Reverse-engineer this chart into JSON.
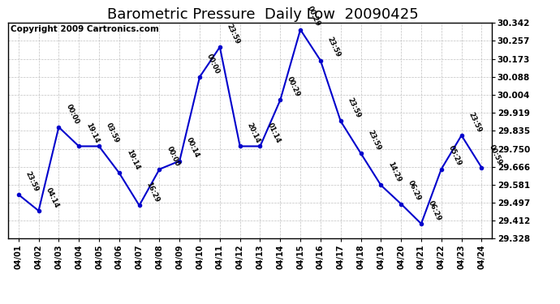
{
  "title": "Barometric Pressure  Daily Low  20090425",
  "copyright": "Copyright 2009 Cartronics.com",
  "x_labels": [
    "04/01",
    "04/02",
    "04/03",
    "04/04",
    "04/05",
    "04/06",
    "04/07",
    "04/08",
    "04/09",
    "04/10",
    "04/11",
    "04/12",
    "04/13",
    "04/14",
    "04/15",
    "04/16",
    "04/17",
    "04/18",
    "04/19",
    "04/20",
    "04/21",
    "04/22",
    "04/23",
    "04/24"
  ],
  "y_values": [
    29.535,
    29.459,
    29.852,
    29.762,
    29.762,
    29.637,
    29.484,
    29.654,
    29.693,
    30.088,
    30.228,
    29.762,
    29.762,
    29.979,
    30.31,
    30.165,
    29.88,
    29.729,
    29.579,
    29.491,
    29.398,
    29.655,
    29.813,
    29.662
  ],
  "point_labels": [
    "23:59",
    "04:14",
    "00:00",
    "19:14",
    "03:59",
    "19:14",
    "16:29",
    "00:00",
    "00:14",
    "00:00",
    "23:59",
    "20:14",
    "01:14",
    "00:29",
    "00:29",
    "23:59",
    "23:59",
    "23:59",
    "14:29",
    "06:29",
    "06:29",
    "05:29",
    "23:59",
    "00:59"
  ],
  "y_min": 29.328,
  "y_max": 30.342,
  "y_ticks": [
    29.328,
    29.412,
    29.497,
    29.581,
    29.666,
    29.75,
    29.835,
    29.919,
    30.004,
    30.088,
    30.173,
    30.257,
    30.342
  ],
  "line_color": "#0000cc",
  "marker_color": "#0000cc",
  "background_color": "#ffffff",
  "grid_color": "#c0c0c0",
  "title_fontsize": 13,
  "copyright_fontsize": 7.5
}
